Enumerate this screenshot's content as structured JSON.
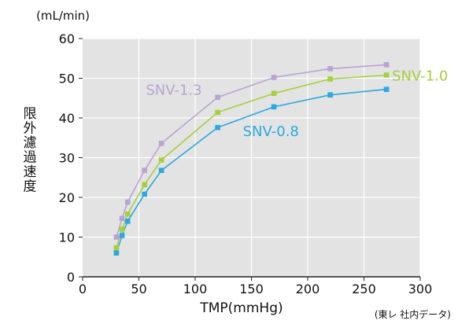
{
  "chart_data": {
    "type": "line",
    "y_unit_label": "(mL/min)",
    "ylabel": "限外濾過速度",
    "xlabel": "TMP(mmHg)",
    "source_note": "(東レ 社内データ)",
    "xlim": [
      0,
      300
    ],
    "ylim": [
      0,
      60
    ],
    "x_ticks": [
      0,
      50,
      100,
      150,
      200,
      250,
      300
    ],
    "y_ticks": [
      0,
      10,
      20,
      30,
      40,
      50,
      60
    ],
    "x_tick_labels": [
      "0",
      "50",
      "100",
      "150",
      "200",
      "250",
      "300"
    ],
    "y_tick_labels": [
      "0",
      "10",
      "20",
      "30",
      "40",
      "50",
      "60"
    ],
    "x": [
      30,
      35,
      40,
      55,
      70,
      120,
      170,
      220,
      270
    ],
    "series": [
      {
        "name": "SNV-1.3",
        "color": "#b9a3d3",
        "values": [
          10,
          14.7,
          18.8,
          26.8,
          33.6,
          45.2,
          50.2,
          52.4,
          53.4
        ]
      },
      {
        "name": "SNV-1.0",
        "color": "#a7cf3d",
        "values": [
          7.3,
          12,
          15.8,
          23.2,
          29.4,
          41.4,
          46.2,
          49.8,
          50.8
        ]
      },
      {
        "name": "SNV-0.8",
        "color": "#2aa9e0",
        "values": [
          6,
          10.4,
          14,
          20.8,
          26.8,
          37.6,
          42.8,
          45.8,
          47.2
        ]
      }
    ],
    "grid": true,
    "background_color": "#e3e3e3"
  }
}
